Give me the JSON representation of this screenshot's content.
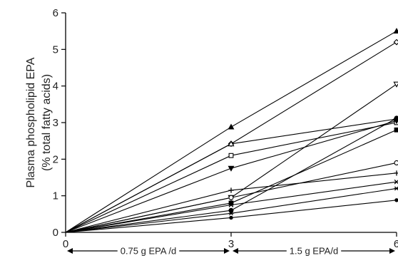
{
  "chart_data": {
    "type": "line",
    "title": "",
    "xlabel": "",
    "ylabel": "Plasma phospholipid EPA",
    "ylabel_line2": "(% total fatty acids)",
    "x": [
      0,
      3,
      6
    ],
    "xlim": [
      0,
      6
    ],
    "ylim": [
      0,
      6
    ],
    "xticks": [
      "0",
      "3",
      "6"
    ],
    "yticks": [
      "0",
      "1",
      "2",
      "3",
      "4",
      "5",
      "6"
    ],
    "grid": false,
    "legend": "none",
    "dose_ranges": [
      {
        "label": "0.75 g EPA /d",
        "from": 0,
        "to": 3
      },
      {
        "label": "1.5 g EPA/d",
        "from": 3,
        "to": 6
      }
    ],
    "series": [
      {
        "marker": "triangle-filled",
        "values": [
          0,
          2.88,
          5.5
        ]
      },
      {
        "marker": "diamond-open",
        "values": [
          0,
          2.42,
          5.2
        ]
      },
      {
        "marker": "triangle-down-open",
        "values": [
          0,
          0.95,
          4.05
        ]
      },
      {
        "marker": "triangle-open",
        "values": [
          0,
          2.42,
          3.1
        ]
      },
      {
        "marker": "square-open",
        "values": [
          0,
          2.1,
          3.0
        ]
      },
      {
        "marker": "triangle-down-filled",
        "values": [
          0,
          1.75,
          3.05
        ]
      },
      {
        "marker": "circle-filled",
        "values": [
          0,
          0.6,
          3.12
        ]
      },
      {
        "marker": "square-filled",
        "values": [
          0,
          0.8,
          2.8
        ]
      },
      {
        "marker": "circle-open",
        "values": [
          0,
          0.95,
          1.9
        ]
      },
      {
        "marker": "plus",
        "values": [
          0,
          1.15,
          1.62
        ]
      },
      {
        "marker": "cross",
        "values": [
          0,
          0.75,
          1.38
        ]
      },
      {
        "marker": "asterisk",
        "values": [
          0,
          0.52,
          1.2
        ]
      },
      {
        "marker": "dot",
        "values": [
          0,
          0.4,
          0.88
        ]
      }
    ]
  }
}
